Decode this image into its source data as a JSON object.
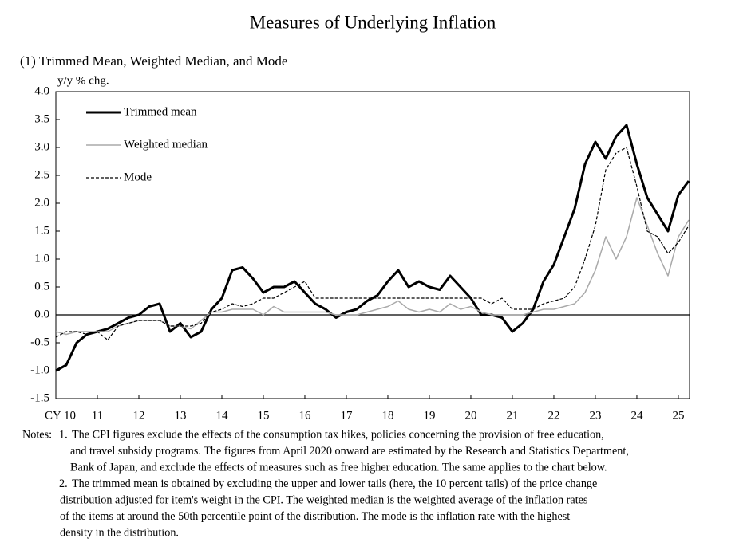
{
  "chart_data": {
    "type": "line",
    "title": "Measures of Underlying Inflation",
    "subtitle": "(1) Trimmed Mean, Weighted Median, and Mode",
    "y_label": "y/y % chg.",
    "x": [
      2010,
      2010.25,
      2010.5,
      2010.75,
      2011,
      2011.25,
      2011.5,
      2011.75,
      2012,
      2012.25,
      2012.5,
      2012.75,
      2013,
      2013.25,
      2013.5,
      2013.75,
      2014,
      2014.25,
      2014.5,
      2014.75,
      2015,
      2015.25,
      2015.5,
      2015.75,
      2016,
      2016.25,
      2016.5,
      2016.75,
      2017,
      2017.25,
      2017.5,
      2017.75,
      2018,
      2018.25,
      2018.5,
      2018.75,
      2019,
      2019.25,
      2019.5,
      2019.75,
      2020,
      2020.25,
      2020.5,
      2020.75,
      2021,
      2021.25,
      2021.5,
      2021.75,
      2022,
      2022.25,
      2022.5,
      2022.75,
      2023,
      2023.25,
      2023.5,
      2023.75,
      2024,
      2024.25,
      2024.5,
      2024.75,
      2025,
      2025.25
    ],
    "series": [
      {
        "name": "Trimmed mean",
        "color": "#000000",
        "width": 3,
        "dash": "none",
        "values": [
          -1.0,
          -0.9,
          -0.5,
          -0.35,
          -0.3,
          -0.25,
          -0.15,
          -0.05,
          0.0,
          0.15,
          0.2,
          -0.3,
          -0.15,
          -0.4,
          -0.3,
          0.1,
          0.3,
          0.8,
          0.85,
          0.65,
          0.4,
          0.5,
          0.5,
          0.6,
          0.4,
          0.2,
          0.1,
          -0.05,
          0.05,
          0.1,
          0.25,
          0.35,
          0.6,
          0.8,
          0.5,
          0.6,
          0.5,
          0.45,
          0.7,
          0.5,
          0.3,
          0.0,
          0.0,
          -0.05,
          -0.3,
          -0.15,
          0.1,
          0.6,
          0.9,
          1.4,
          1.9,
          2.7,
          3.1,
          2.8,
          3.2,
          3.4,
          2.7,
          2.1,
          1.8,
          1.5,
          2.15,
          2.4
        ]
      },
      {
        "name": "Weighted median",
        "color": "#aaaaaa",
        "width": 1.5,
        "dash": "none",
        "values": [
          -0.3,
          -0.35,
          -0.3,
          -0.3,
          -0.3,
          -0.3,
          -0.2,
          -0.15,
          -0.1,
          -0.1,
          -0.1,
          -0.2,
          -0.2,
          -0.25,
          -0.1,
          0.05,
          0.05,
          0.1,
          0.1,
          0.1,
          0.0,
          0.15,
          0.05,
          0.05,
          0.05,
          0.05,
          0.05,
          0.0,
          0.0,
          0.0,
          0.05,
          0.1,
          0.15,
          0.25,
          0.1,
          0.05,
          0.1,
          0.05,
          0.2,
          0.1,
          0.15,
          0.05,
          0.0,
          0.0,
          0.0,
          0.0,
          0.05,
          0.1,
          0.1,
          0.15,
          0.2,
          0.4,
          0.8,
          1.4,
          1.0,
          1.4,
          2.1,
          1.6,
          1.1,
          0.7,
          1.4,
          1.7
        ]
      },
      {
        "name": "Mode",
        "color": "#000000",
        "width": 1.2,
        "dash": "4 2",
        "values": [
          -0.4,
          -0.3,
          -0.3,
          -0.35,
          -0.3,
          -0.45,
          -0.2,
          -0.15,
          -0.1,
          -0.1,
          -0.1,
          -0.2,
          -0.2,
          -0.2,
          -0.15,
          0.05,
          0.1,
          0.2,
          0.15,
          0.2,
          0.3,
          0.3,
          0.4,
          0.5,
          0.6,
          0.3,
          0.3,
          0.3,
          0.3,
          0.3,
          0.3,
          0.3,
          0.3,
          0.3,
          0.3,
          0.3,
          0.3,
          0.3,
          0.3,
          0.3,
          0.3,
          0.3,
          0.2,
          0.3,
          0.1,
          0.1,
          0.1,
          0.2,
          0.25,
          0.3,
          0.5,
          1.0,
          1.6,
          2.6,
          2.9,
          3.0,
          2.3,
          1.5,
          1.4,
          1.1,
          1.3,
          1.6
        ]
      }
    ],
    "xlim": [
      2010,
      2025.27
    ],
    "xticks": [
      {
        "value": 2010,
        "label": "CY 10"
      },
      {
        "value": 2011,
        "label": "11"
      },
      {
        "value": 2012,
        "label": "12"
      },
      {
        "value": 2013,
        "label": "13"
      },
      {
        "value": 2014,
        "label": "14"
      },
      {
        "value": 2015,
        "label": "15"
      },
      {
        "value": 2016,
        "label": "16"
      },
      {
        "value": 2017,
        "label": "17"
      },
      {
        "value": 2018,
        "label": "18"
      },
      {
        "value": 2019,
        "label": "19"
      },
      {
        "value": 2020,
        "label": "20"
      },
      {
        "value": 2021,
        "label": "21"
      },
      {
        "value": 2022,
        "label": "22"
      },
      {
        "value": 2023,
        "label": "23"
      },
      {
        "value": 2024,
        "label": "24"
      },
      {
        "value": 2025,
        "label": "25"
      }
    ],
    "ylim": [
      -1.5,
      4.0
    ],
    "yticks": [
      {
        "value": -1.5,
        "label": "-1.5"
      },
      {
        "value": -1.0,
        "label": "-1.0"
      },
      {
        "value": -0.5,
        "label": "-0.5"
      },
      {
        "value": 0,
        "label": "0.0"
      },
      {
        "value": 0.5,
        "label": "0.5"
      },
      {
        "value": 1.0,
        "label": "1.0"
      },
      {
        "value": 1.5,
        "label": "1.5"
      },
      {
        "value": 2.0,
        "label": "2.0"
      },
      {
        "value": 2.5,
        "label": "2.5"
      },
      {
        "value": 3.0,
        "label": "3.0"
      },
      {
        "value": 3.5,
        "label": "3.5"
      },
      {
        "value": 4.0,
        "label": "4.0"
      }
    ],
    "grid": false,
    "legend": "top-left",
    "notes_label": "Notes:",
    "notes": [
      {
        "number": "1.",
        "lines": [
          "The CPI figures exclude the effects of the consumption tax hikes, policies concerning the provision of free education,",
          "and travel subsidy programs. The figures from April 2020 onward are estimated by the Research and Statistics Department,",
          "Bank of Japan, and exclude the effects of measures such as free higher education. The same applies to the chart below."
        ]
      },
      {
        "number": "2.",
        "lines": [
          "The trimmed mean is obtained by excluding the upper and lower tails (here, the 10 percent tails) of the price change",
          "distribution adjusted for item's weight in the CPI. The weighted median is the weighted average of the inflation rates",
          "of the items at around the 50th percentile point of the distribution. The mode is the inflation rate with the highest",
          "density in the distribution."
        ]
      }
    ]
  }
}
